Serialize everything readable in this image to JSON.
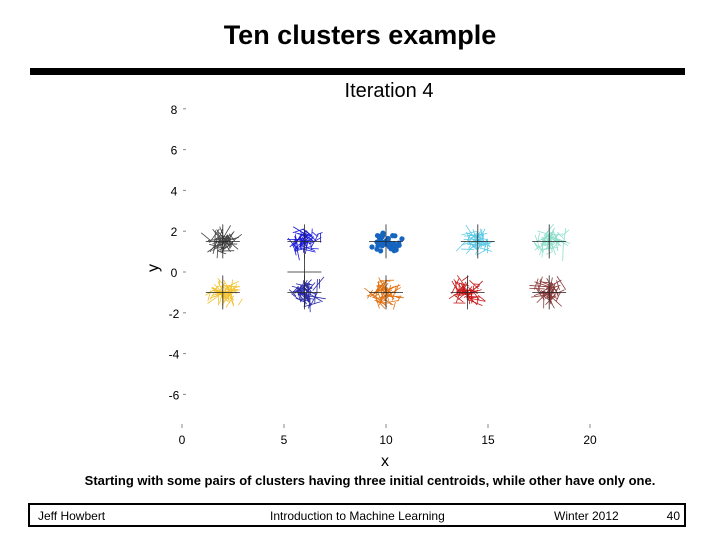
{
  "slide": {
    "title": "Ten clusters example",
    "caption": "Starting with some pairs of clusters having three initial centroids, while other have only one."
  },
  "footer": {
    "author": "Jeff Howbert",
    "course": "Introduction to Machine Learning",
    "term": "Winter 2012",
    "page": "40"
  },
  "chart_data": {
    "type": "scatter",
    "title": "Iteration 4",
    "xlabel": "x",
    "ylabel": "y",
    "xlim": [
      0,
      20
    ],
    "ylim": [
      -6,
      8
    ],
    "xticks": [
      "0",
      "5",
      "10",
      "15",
      "20"
    ],
    "yticks": [
      "8",
      "6",
      "4",
      "2",
      "0",
      "-2",
      "-4",
      "-6"
    ],
    "grid": false,
    "marker_note": "highlighted cluster drawn with filled dots; others with thin hatch strokes",
    "clusters": [
      {
        "center": [
          2,
          1.5
        ],
        "color": "#444444",
        "style": "strokes"
      },
      {
        "center": [
          6,
          1.5
        ],
        "color": "#1a1ad6",
        "style": "strokes"
      },
      {
        "center": [
          10,
          1.5
        ],
        "color": "#1565c0",
        "style": "dots"
      },
      {
        "center": [
          14.5,
          1.5
        ],
        "color": "#5ecbe6",
        "style": "strokes"
      },
      {
        "center": [
          18,
          1.5
        ],
        "color": "#8fe0cc",
        "style": "strokes"
      },
      {
        "center": [
          2,
          -1
        ],
        "color": "#f2c230",
        "style": "strokes"
      },
      {
        "center": [
          6,
          -1
        ],
        "color": "#2a2aa8",
        "style": "strokes"
      },
      {
        "center": [
          10,
          -1
        ],
        "color": "#e07010",
        "style": "strokes"
      },
      {
        "center": [
          14,
          -1
        ],
        "color": "#c81818",
        "style": "strokes"
      },
      {
        "center": [
          18,
          -1
        ],
        "color": "#8a3a3a",
        "style": "strokes"
      }
    ],
    "centroids": [
      [
        2,
        1.5
      ],
      [
        6,
        1.5
      ],
      [
        6,
        0
      ],
      [
        10,
        1.5
      ],
      [
        14.5,
        1.5
      ],
      [
        18,
        1.5
      ],
      [
        2,
        -1
      ],
      [
        6,
        -1
      ],
      [
        10,
        -1
      ],
      [
        14,
        -1
      ],
      [
        18,
        -1
      ]
    ]
  }
}
